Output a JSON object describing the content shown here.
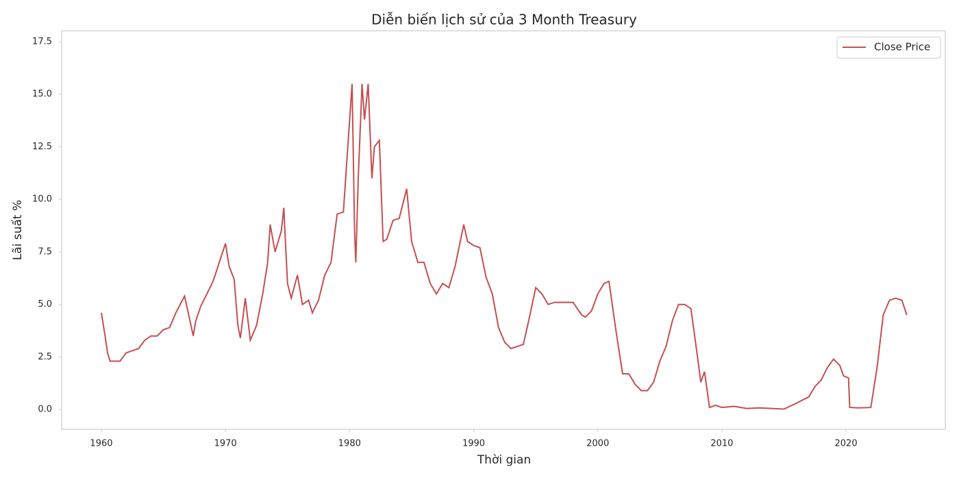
{
  "chart_data": {
    "type": "line",
    "title": "Diễn biến lịch sử của 3 Month Treasury",
    "xlabel": "Thời gian",
    "ylabel": "Lãi suất %",
    "x": [
      1960.0,
      1960.3,
      1960.5,
      1960.7,
      1961.0,
      1961.5,
      1962.0,
      1962.5,
      1963.0,
      1963.5,
      1964.0,
      1964.5,
      1965.0,
      1965.5,
      1966.0,
      1966.7,
      1967.0,
      1967.4,
      1967.6,
      1968.0,
      1968.5,
      1969.0,
      1969.5,
      1970.0,
      1970.3,
      1970.7,
      1971.0,
      1971.2,
      1971.6,
      1972.0,
      1972.5,
      1973.0,
      1973.4,
      1973.6,
      1974.0,
      1974.5,
      1974.7,
      1975.0,
      1975.3,
      1975.8,
      1976.2,
      1976.7,
      1977.0,
      1977.5,
      1978.0,
      1978.5,
      1979.0,
      1979.5,
      1979.8,
      1980.2,
      1980.4,
      1980.5,
      1980.7,
      1981.0,
      1981.2,
      1981.5,
      1981.8,
      1982.0,
      1982.4,
      1982.7,
      1983.0,
      1983.5,
      1984.0,
      1984.6,
      1985.0,
      1985.5,
      1986.0,
      1986.5,
      1987.0,
      1987.5,
      1988.0,
      1988.5,
      1989.2,
      1989.5,
      1990.0,
      1990.5,
      1991.0,
      1991.5,
      1992.0,
      1992.5,
      1993.0,
      1993.5,
      1994.0,
      1994.5,
      1995.0,
      1995.5,
      1996.0,
      1996.5,
      1997.0,
      1997.5,
      1998.0,
      1998.7,
      1999.0,
      1999.5,
      2000.0,
      2000.5,
      2000.9,
      2001.5,
      2002.0,
      2002.5,
      2003.0,
      2003.5,
      2004.0,
      2004.5,
      2005.0,
      2005.5,
      2006.0,
      2006.5,
      2007.0,
      2007.5,
      2007.9,
      2008.3,
      2008.6,
      2009.0,
      2009.5,
      2010.0,
      2011.0,
      2012.0,
      2013.0,
      2014.0,
      2015.0,
      2016.0,
      2017.0,
      2017.5,
      2018.0,
      2018.5,
      2019.0,
      2019.5,
      2019.8,
      2020.2,
      2020.3,
      2021.0,
      2022.0,
      2022.5,
      2023.0,
      2023.5,
      2024.0,
      2024.5,
      2024.9
    ],
    "series": [
      {
        "name": "Close Price",
        "color": "#c44e52",
        "values": [
          4.6,
          3.5,
          2.7,
          2.3,
          2.3,
          2.3,
          2.7,
          2.8,
          2.9,
          3.3,
          3.5,
          3.5,
          3.8,
          3.9,
          4.6,
          5.4,
          4.6,
          3.5,
          4.2,
          4.9,
          5.5,
          6.1,
          7.0,
          7.9,
          6.8,
          6.2,
          4.0,
          3.4,
          5.3,
          3.3,
          4.0,
          5.5,
          7.0,
          8.8,
          7.5,
          8.5,
          9.6,
          6.0,
          5.3,
          6.4,
          5.0,
          5.2,
          4.6,
          5.2,
          6.4,
          7.0,
          9.3,
          9.4,
          12.0,
          15.5,
          8.5,
          7.0,
          11.0,
          15.5,
          13.8,
          15.5,
          11.0,
          12.5,
          12.8,
          8.0,
          8.1,
          9.0,
          9.1,
          10.5,
          8.0,
          7.0,
          7.0,
          6.0,
          5.5,
          6.0,
          5.8,
          6.8,
          8.8,
          8.0,
          7.8,
          7.7,
          6.3,
          5.5,
          3.9,
          3.2,
          2.9,
          3.0,
          3.1,
          4.4,
          5.8,
          5.5,
          5.0,
          5.1,
          5.1,
          5.1,
          5.1,
          4.5,
          4.4,
          4.7,
          5.5,
          6.0,
          6.1,
          3.6,
          1.7,
          1.7,
          1.2,
          0.9,
          0.9,
          1.3,
          2.3,
          3.0,
          4.2,
          5.0,
          5.0,
          4.8,
          3.1,
          1.3,
          1.8,
          0.1,
          0.2,
          0.1,
          0.15,
          0.05,
          0.08,
          0.05,
          0.02,
          0.3,
          0.6,
          1.1,
          1.4,
          2.0,
          2.4,
          2.1,
          1.6,
          1.5,
          0.1,
          0.08,
          0.1,
          2.0,
          4.5,
          5.2,
          5.3,
          5.2,
          4.5
        ]
      }
    ],
    "xlim": [
      1956.8,
      2028.0
    ],
    "xticks": [
      1960,
      1970,
      1980,
      1990,
      2000,
      2010,
      2020
    ],
    "ylim": [
      -0.94,
      18.02
    ],
    "yticks": [
      {
        "value": 0,
        "label": "0.0"
      },
      {
        "value": 2.5,
        "label": "2.5"
      },
      {
        "value": 5,
        "label": "5.0"
      },
      {
        "value": 7.5,
        "label": "7.5"
      },
      {
        "value": 10,
        "label": "10.0"
      },
      {
        "value": 12.5,
        "label": "12.5"
      },
      {
        "value": 15,
        "label": "15.0"
      },
      {
        "value": 17.5,
        "label": "17.5"
      }
    ],
    "grid": false,
    "legend": "upper right"
  }
}
